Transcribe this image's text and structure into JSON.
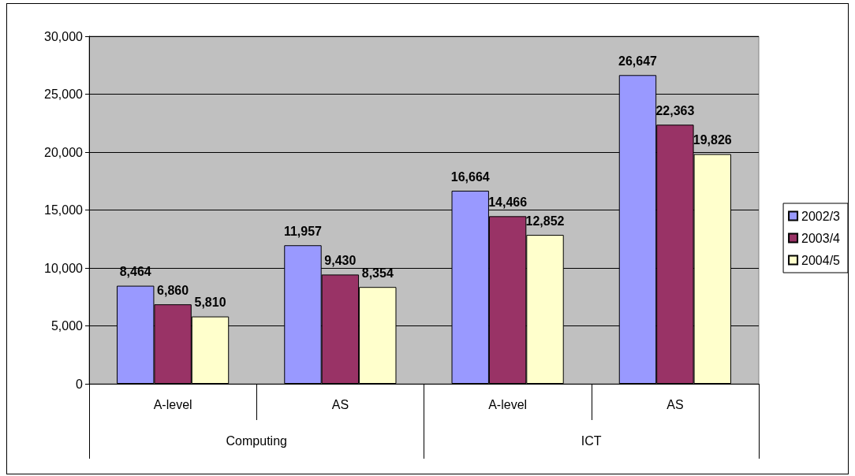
{
  "chart_data": {
    "type": "bar",
    "categories": [
      "A-level",
      "AS",
      "A-level",
      "AS"
    ],
    "annotations": [
      "Computing",
      "ICT"
    ],
    "series": [
      {
        "name": "2002/3",
        "color": "#9999ff",
        "values": [
          8464,
          11957,
          16664,
          26647
        ],
        "value_labels": [
          "8,464",
          "11,957",
          "16,664",
          "26,647"
        ]
      },
      {
        "name": "2003/4",
        "color": "#993366",
        "values": [
          6860,
          9430,
          14466,
          22363
        ],
        "value_labels": [
          "6,860",
          "9,430",
          "14,466",
          "22,363"
        ]
      },
      {
        "name": "2004/5",
        "color": "#ffffcc",
        "values": [
          5810,
          8354,
          12852,
          19826
        ],
        "value_labels": [
          "5,810",
          "8,354",
          "12,852",
          "19,826"
        ]
      }
    ],
    "ylim": [
      0,
      30000
    ],
    "yticks": [
      {
        "value": 0,
        "label": "0"
      },
      {
        "value": 5000,
        "label": "5,000"
      },
      {
        "value": 10000,
        "label": "10,000"
      },
      {
        "value": 15000,
        "label": "15,000"
      },
      {
        "value": 20000,
        "label": "20,000"
      },
      {
        "value": 25000,
        "label": "25,000"
      },
      {
        "value": 30000,
        "label": "30,000"
      }
    ],
    "grid": "y",
    "legend": "right"
  }
}
